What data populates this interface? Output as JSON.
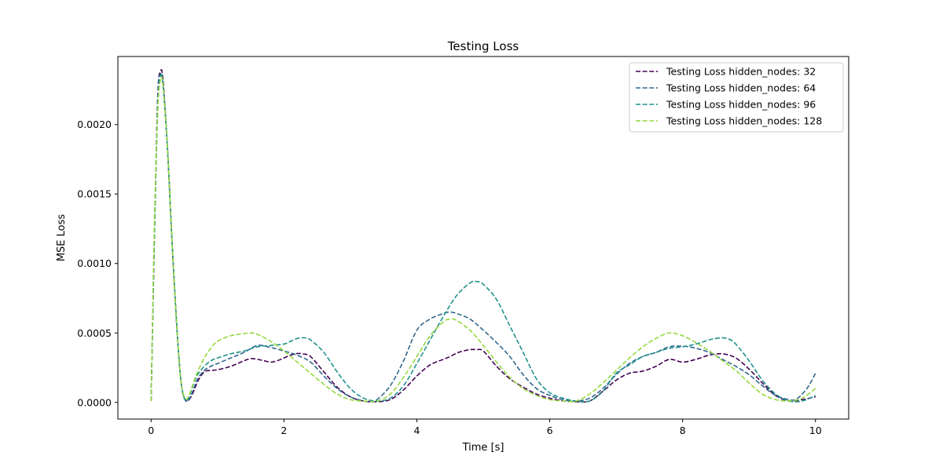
{
  "chart_data": {
    "type": "line",
    "title": "Testing Loss",
    "xlabel": "Time [s]",
    "ylabel": "MSE Loss",
    "xlim": [
      -0.5,
      10.5
    ],
    "ylim": [
      -0.00012,
      0.00249
    ],
    "xticks": [
      0,
      2,
      4,
      6,
      8,
      10
    ],
    "xtick_labels": [
      "0",
      "2",
      "4",
      "6",
      "8",
      "10"
    ],
    "yticks": [
      0,
      0.0005,
      0.001,
      0.0015,
      0.002
    ],
    "ytick_labels": [
      "0.0000",
      "0.0005",
      "0.0010",
      "0.0015",
      "0.0020"
    ],
    "grid": false,
    "legend_position": "upper-right",
    "line_style": "dashed",
    "series": [
      {
        "name": "Testing Loss hidden_nodes: 32",
        "color": "#440154",
        "x": [
          0,
          0.05,
          0.1,
          0.14,
          0.18,
          0.25,
          0.3,
          0.35,
          0.4,
          0.45,
          0.5,
          0.55,
          0.6,
          0.65,
          0.7,
          0.8,
          0.9,
          1.0,
          1.2,
          1.4,
          1.5,
          1.6,
          1.7,
          1.8,
          1.9,
          2.0,
          2.1,
          2.2,
          2.3,
          2.4,
          2.6,
          2.8,
          3.0,
          3.2,
          3.4,
          3.6,
          3.8,
          4.0,
          4.2,
          4.4,
          4.5,
          4.6,
          4.7,
          4.8,
          4.9,
          5.0,
          5.2,
          5.4,
          5.6,
          5.8,
          6.0,
          6.2,
          6.4,
          6.6,
          6.8,
          7.0,
          7.2,
          7.4,
          7.6,
          7.8,
          8.0,
          8.2,
          8.4,
          8.6,
          8.8,
          9.0,
          9.2,
          9.4,
          9.6,
          9.8,
          10.0
        ],
        "y": [
          1e-05,
          0.0012,
          0.0022,
          0.00238,
          0.00232,
          0.0018,
          0.0013,
          0.00085,
          0.00045,
          0.00015,
          3e-05,
          1e-05,
          4e-05,
          9e-05,
          0.00015,
          0.00022,
          0.00023,
          0.000235,
          0.00026,
          0.0003,
          0.000315,
          0.00031,
          0.0003,
          0.00029,
          0.0003,
          0.00032,
          0.00034,
          0.000352,
          0.000348,
          0.00033,
          0.00022,
          0.00011,
          4e-05,
          1e-05,
          5e-06,
          2e-05,
          9e-05,
          0.00019,
          0.00027,
          0.00031,
          0.00033,
          0.000355,
          0.00037,
          0.00038,
          0.00038,
          0.00037,
          0.00026,
          0.00017,
          0.00011,
          6e-05,
          3e-05,
          1e-05,
          5e-06,
          1e-05,
          8e-05,
          0.00016,
          0.00021,
          0.000225,
          0.00026,
          0.00031,
          0.00029,
          0.00031,
          0.00034,
          0.00035,
          0.00032,
          0.00024,
          0.00014,
          5e-05,
          1e-05,
          2e-05,
          4e-05
        ]
      },
      {
        "name": "Testing Loss hidden_nodes: 64",
        "color": "#31688e",
        "x": [
          0,
          0.05,
          0.1,
          0.14,
          0.18,
          0.25,
          0.3,
          0.35,
          0.4,
          0.45,
          0.5,
          0.55,
          0.6,
          0.65,
          0.7,
          0.8,
          0.9,
          1.0,
          1.2,
          1.4,
          1.6,
          1.8,
          2.0,
          2.2,
          2.4,
          2.6,
          2.8,
          3.0,
          3.2,
          3.3,
          3.4,
          3.6,
          3.8,
          4.0,
          4.2,
          4.4,
          4.5,
          4.6,
          4.8,
          5.0,
          5.2,
          5.4,
          5.6,
          5.8,
          6.0,
          6.2,
          6.4,
          6.6,
          6.8,
          7.0,
          7.2,
          7.4,
          7.6,
          7.8,
          8.0,
          8.2,
          8.4,
          8.6,
          8.8,
          9.0,
          9.2,
          9.4,
          9.6,
          9.7,
          9.8,
          9.9,
          10.0
        ],
        "y": [
          1e-05,
          0.0012,
          0.0022,
          0.00236,
          0.0023,
          0.0018,
          0.0013,
          0.00085,
          0.00045,
          0.00015,
          3e-05,
          1e-05,
          5e-05,
          0.00011,
          0.00017,
          0.00023,
          0.00026,
          0.00028,
          0.00032,
          0.00036,
          0.00041,
          0.000395,
          0.00037,
          0.00034,
          0.00029,
          0.00019,
          0.0001,
          4e-05,
          1e-05,
          5e-06,
          2e-05,
          0.00012,
          0.0003,
          0.00052,
          0.0006,
          0.00064,
          0.00065,
          0.00064,
          0.0006,
          0.00052,
          0.00043,
          0.00033,
          0.0002,
          0.0001,
          5e-05,
          2e-05,
          1e-05,
          3e-05,
          0.0001,
          0.0002,
          0.00028,
          0.00033,
          0.00036,
          0.0004,
          0.000405,
          0.00039,
          0.00036,
          0.00031,
          0.00026,
          0.0002,
          0.00012,
          5e-05,
          2e-05,
          2e-05,
          6e-05,
          0.00012,
          0.00021
        ]
      },
      {
        "name": "Testing Loss hidden_nodes: 96",
        "color": "#21918c",
        "x": [
          0,
          0.05,
          0.1,
          0.14,
          0.18,
          0.25,
          0.3,
          0.35,
          0.4,
          0.45,
          0.5,
          0.55,
          0.6,
          0.65,
          0.7,
          0.8,
          0.9,
          1.0,
          1.2,
          1.4,
          1.6,
          1.8,
          2.0,
          2.1,
          2.2,
          2.3,
          2.4,
          2.6,
          2.8,
          3.0,
          3.2,
          3.4,
          3.6,
          3.8,
          4.0,
          4.2,
          4.4,
          4.6,
          4.8,
          4.9,
          5.0,
          5.2,
          5.4,
          5.6,
          5.8,
          6.0,
          6.2,
          6.4,
          6.6,
          6.8,
          7.0,
          7.2,
          7.4,
          7.6,
          7.8,
          8.0,
          8.2,
          8.4,
          8.5,
          8.6,
          8.7,
          8.8,
          9.0,
          9.2,
          9.4,
          9.6,
          9.8,
          10.0
        ],
        "y": [
          1e-05,
          0.0012,
          0.0021,
          0.00234,
          0.00228,
          0.0018,
          0.0013,
          0.00085,
          0.00045,
          0.00015,
          3e-05,
          2e-05,
          8e-05,
          0.00015,
          0.0002,
          0.00026,
          0.0003,
          0.00032,
          0.00035,
          0.00037,
          0.0004,
          0.00041,
          0.00042,
          0.00044,
          0.00046,
          0.000465,
          0.00045,
          0.00036,
          0.00022,
          0.0001,
          3e-05,
          1e-05,
          3e-05,
          0.00012,
          0.00028,
          0.00045,
          0.00062,
          0.00077,
          0.00086,
          0.00087,
          0.00085,
          0.00074,
          0.00055,
          0.00036,
          0.00017,
          7e-05,
          3e-05,
          1e-05,
          1e-05,
          8e-05,
          0.00021,
          0.00027,
          0.00033,
          0.00036,
          0.00039,
          0.0004,
          0.00042,
          0.00045,
          0.00046,
          0.000465,
          0.000455,
          0.00042,
          0.0003,
          0.00016,
          6e-05,
          1e-05,
          1e-05,
          5e-05
        ]
      },
      {
        "name": "Testing Loss hidden_nodes: 128",
        "color": "#95d840",
        "x": [
          0,
          0.05,
          0.1,
          0.14,
          0.18,
          0.25,
          0.3,
          0.35,
          0.4,
          0.45,
          0.5,
          0.55,
          0.6,
          0.65,
          0.7,
          0.8,
          0.9,
          1.0,
          1.2,
          1.4,
          1.5,
          1.6,
          1.8,
          2.0,
          2.2,
          2.4,
          2.6,
          2.8,
          3.0,
          3.2,
          3.4,
          3.6,
          3.8,
          4.0,
          4.2,
          4.4,
          4.5,
          4.6,
          4.8,
          5.0,
          5.2,
          5.4,
          5.6,
          5.8,
          6.0,
          6.2,
          6.4,
          6.6,
          6.8,
          7.0,
          7.2,
          7.4,
          7.6,
          7.8,
          8.0,
          8.2,
          8.4,
          8.6,
          8.8,
          9.0,
          9.2,
          9.4,
          9.6,
          9.8,
          10.0
        ],
        "y": [
          1e-05,
          0.0013,
          0.0021,
          0.00232,
          0.00228,
          0.0018,
          0.0013,
          0.00085,
          0.00045,
          0.00015,
          4e-05,
          3e-05,
          9e-05,
          0.00016,
          0.00022,
          0.00032,
          0.00039,
          0.00044,
          0.00048,
          0.000495,
          0.0005,
          0.00049,
          0.00044,
          0.00037,
          0.00029,
          0.00021,
          0.00013,
          6e-05,
          2e-05,
          1e-05,
          1e-05,
          6e-05,
          0.00018,
          0.00033,
          0.00048,
          0.00058,
          0.0006,
          0.00059,
          0.00052,
          0.00041,
          0.00029,
          0.00018,
          0.0001,
          5e-05,
          2e-05,
          1e-05,
          1e-05,
          6e-05,
          0.00014,
          0.00023,
          0.00032,
          0.0004,
          0.00046,
          0.0005,
          0.00048,
          0.00043,
          0.00037,
          0.0003,
          0.00023,
          0.00014,
          6e-05,
          2e-05,
          1e-05,
          3e-05,
          0.0001
        ]
      }
    ]
  }
}
